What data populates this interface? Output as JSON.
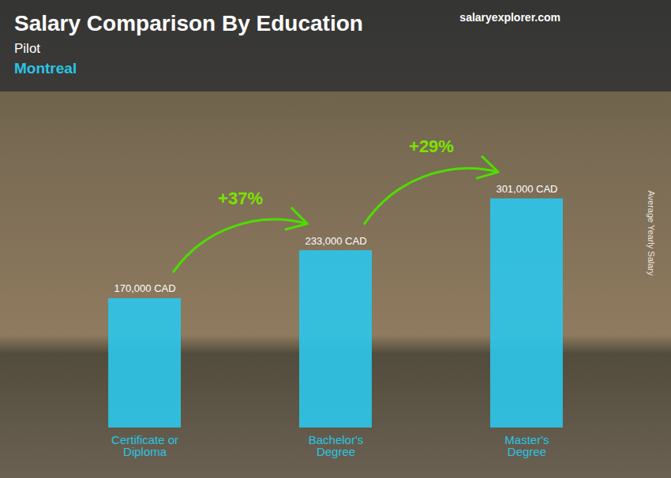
{
  "chart_data": {
    "type": "bar",
    "title": "Salary Comparison By Education",
    "subtitle": [
      "Pilot",
      "Montreal"
    ],
    "ylabel": "Average Yearly Salary",
    "categories": [
      "Certificate or\nDiploma",
      "Bachelor's\nDegree",
      "Master's\nDegree"
    ],
    "values": [
      170000,
      233000,
      301000
    ],
    "value_labels": [
      "170,000 CAD",
      "233,000 CAD",
      "301,000 CAD"
    ],
    "data_labels": true,
    "color": "#2ec4e8",
    "ylim": [
      0,
      400000
    ],
    "grid": false,
    "tick_labels": "x",
    "annotations": [
      {
        "text": "+37%",
        "from": "Certificate or\nDiploma",
        "to": "Bachelor's\nDegree"
      },
      {
        "text": "+29%",
        "from": "Bachelor's\nDegree",
        "to": "Master's\nDegree"
      },
      {
        "text": "salaryexplorer.com"
      }
    ]
  }
}
